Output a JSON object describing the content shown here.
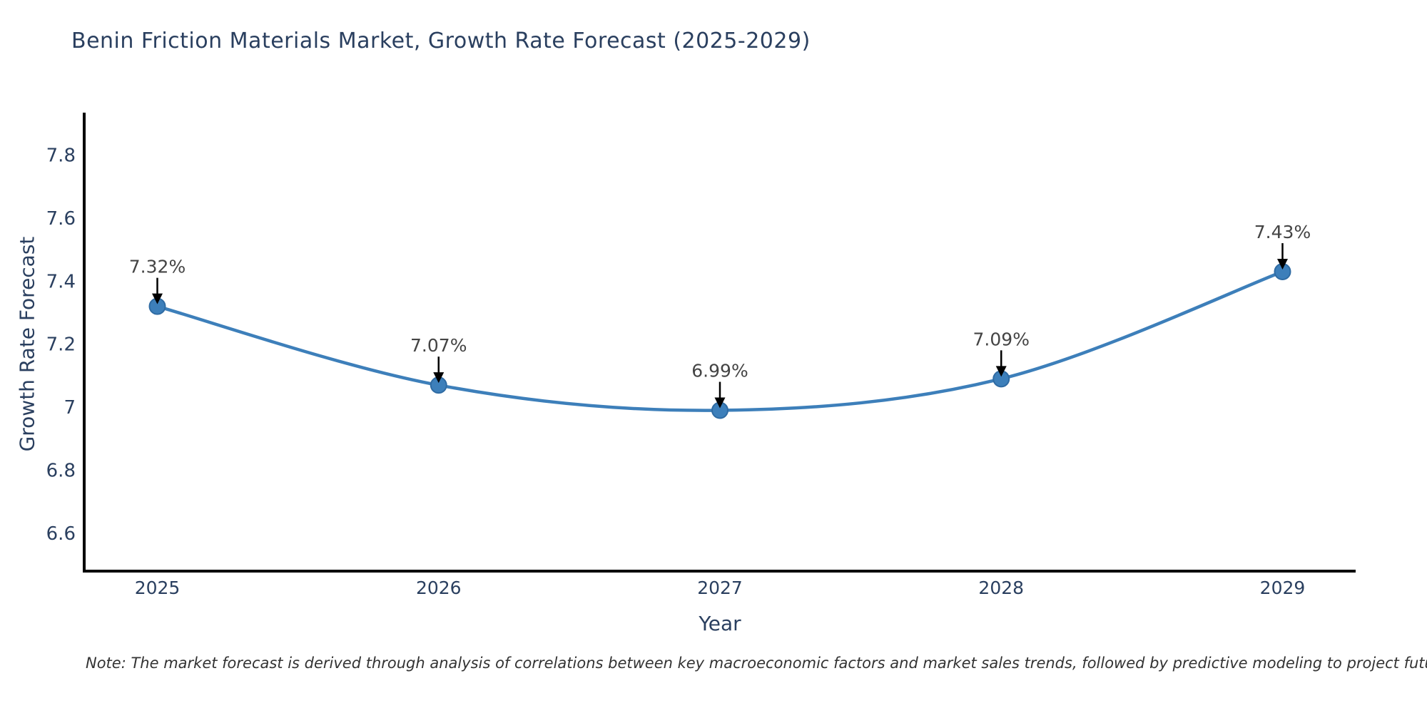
{
  "chart_data": {
    "type": "line",
    "title": "Benin Friction Materials Market, Growth Rate Forecast (2025-2029)",
    "xlabel": "Year",
    "ylabel": "Growth Rate Forecast",
    "x": [
      2025,
      2026,
      2027,
      2028,
      2029
    ],
    "y": [
      7.32,
      7.07,
      6.99,
      7.09,
      7.43
    ],
    "point_labels": [
      "7.32%",
      "7.07%",
      "6.99%",
      "7.09%",
      "7.43%"
    ],
    "xtick_labels": [
      "2025",
      "2026",
      "2027",
      "2028",
      "2029"
    ],
    "ytick_values": [
      6.6,
      6.8,
      7.0,
      7.2,
      7.4,
      7.6,
      7.8
    ],
    "ytick_labels": [
      "6.6",
      "6.8",
      "7",
      "7.2",
      "7.4",
      "7.6",
      "7.8"
    ],
    "xlim": [
      2024.74,
      2029.26
    ],
    "ylim": [
      6.48,
      7.93
    ],
    "grid": false,
    "legend_position": "none",
    "line_shape": "spline",
    "colors": {
      "line": "#3d7fba",
      "marker_fill": "#3d7fba",
      "marker_edge": "#2f6ba3",
      "axis": "#000000",
      "title_text": "#2a3f5f",
      "tick_text": "#2a3f5f",
      "annotation_text": "#444444",
      "arrow": "#000000",
      "background": "#ffffff"
    }
  },
  "note": {
    "text": "Note: The market forecast is derived through analysis of correlations between key macroeconomic factors and market sales trends, followed by predictive modeling to project future sales"
  }
}
